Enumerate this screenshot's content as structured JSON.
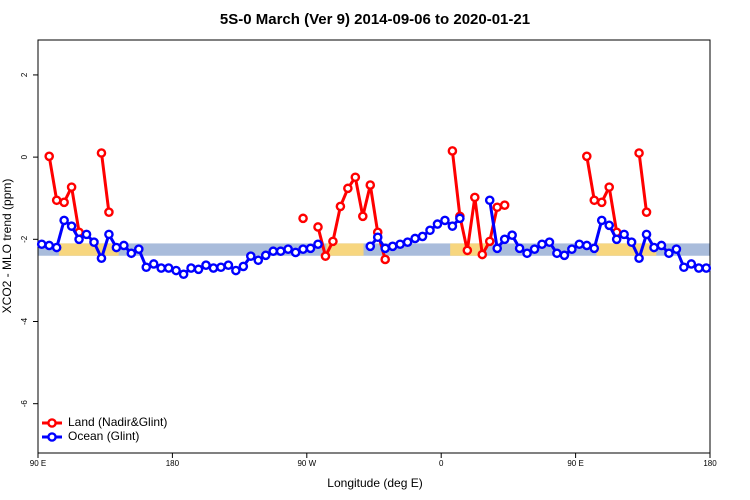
{
  "chart_data": {
    "type": "line",
    "title": "5S-0 March (Ver 9)   2014-09-06 to 2020-01-21",
    "x_label": "Longitude (deg E)",
    "y_label": "XCO2 - MLO trend (ppm)",
    "x": [
      92.5,
      97.5,
      102.5,
      107.5,
      112.5,
      117.5,
      122.5,
      127.5,
      132.5,
      137.5,
      142.5,
      147.5,
      152.5,
      157.5,
      162.5,
      167.5,
      172.5,
      177.5,
      182.5,
      187.5,
      192.5,
      197.5,
      202.5,
      207.5,
      212.5,
      217.5,
      222.5,
      227.5,
      232.5,
      237.5,
      242.5,
      247.5,
      252.5,
      257.5,
      262.5,
      267.5,
      272.5,
      277.5,
      282.5,
      287.5,
      292.5,
      297.5,
      302.5,
      307.5,
      312.5,
      317.5,
      322.5,
      327.5,
      332.5,
      337.5,
      342.5,
      347.5,
      352.5,
      357.5,
      362.5,
      367.5,
      372.5,
      377.5,
      382.5,
      387.5,
      392.5,
      397.5,
      402.5,
      407.5,
      412.5,
      417.5,
      422.5,
      427.5,
      432.5,
      437.5,
      442.5,
      447.5,
      452.5,
      457.5,
      462.5,
      467.5,
      472.5,
      477.5,
      482.5,
      487.5,
      492.5,
      497.5,
      502.5,
      507.5,
      512.5,
      517.5,
      522.5,
      527.5,
      532.5,
      537.5
    ],
    "series": [
      {
        "name": "Land (Nadir&Glint)",
        "color": "#ff0000",
        "values": [
          null,
          0.02,
          -1.05,
          -1.1,
          -0.73,
          -1.83,
          null,
          null,
          0.1,
          -1.34,
          null,
          null,
          null,
          null,
          null,
          null,
          null,
          null,
          null,
          null,
          null,
          null,
          null,
          null,
          null,
          null,
          null,
          null,
          null,
          null,
          null,
          null,
          null,
          null,
          null,
          -1.49,
          null,
          -1.7,
          -2.41,
          -2.05,
          -1.2,
          -0.76,
          -0.49,
          -1.44,
          -0.68,
          -1.83,
          -2.49,
          null,
          null,
          null,
          null,
          null,
          null,
          null,
          null,
          0.15,
          -1.44,
          -2.27,
          -0.98,
          -2.37,
          -2.05,
          -1.22,
          -1.17,
          null,
          null,
          null,
          null,
          null,
          null,
          null,
          null,
          null,
          null,
          0.02,
          -1.05,
          -1.1,
          -0.73,
          -1.83,
          null,
          null,
          0.1,
          -1.34,
          null,
          null,
          null,
          null,
          null,
          null,
          null,
          null
        ]
      },
      {
        "name": "Ocean (Glint)",
        "color": "#0000ff",
        "values": [
          -2.12,
          -2.15,
          -2.2,
          -1.54,
          -1.68,
          -2.0,
          -1.88,
          -2.07,
          -2.46,
          -1.88,
          -2.2,
          -2.15,
          -2.34,
          -2.24,
          -2.68,
          -2.6,
          -2.7,
          -2.7,
          -2.76,
          -2.85,
          -2.7,
          -2.73,
          -2.63,
          -2.7,
          -2.68,
          -2.63,
          -2.76,
          -2.66,
          -2.41,
          -2.51,
          -2.39,
          -2.29,
          -2.29,
          -2.24,
          -2.32,
          -2.24,
          -2.22,
          -2.12,
          null,
          null,
          null,
          null,
          null,
          null,
          -2.17,
          -1.95,
          -2.22,
          -2.17,
          -2.12,
          -2.07,
          -1.98,
          -1.93,
          -1.78,
          -1.63,
          -1.54,
          -1.68,
          -1.49,
          null,
          null,
          null,
          -1.05,
          -2.22,
          -2.0,
          -1.9,
          -2.22,
          -2.34,
          -2.24,
          -2.12,
          -2.07,
          -2.34,
          -2.39,
          -2.24,
          -2.12,
          -2.15,
          -2.22,
          -1.54,
          -1.66,
          -2.0,
          -1.88,
          -2.07,
          -2.46,
          -1.88,
          -2.2,
          -2.15,
          -2.34,
          -2.24,
          -2.68,
          -2.6,
          -2.7,
          -2.7
        ]
      }
    ],
    "band": {
      "ylim": [
        -2.4,
        -2.1
      ],
      "color": "#a9bcdb",
      "land_color": "#f7d67f",
      "land_x": [
        [
          104,
          144
        ],
        [
          283,
          308
        ],
        [
          366,
          390
        ],
        [
          464,
          504
        ]
      ]
    },
    "xlim": [
      90,
      540
    ],
    "xticks": [
      {
        "value": 90,
        "label": "90 E"
      },
      180,
      {
        "value": 270,
        "label": "90 W"
      },
      {
        "value": 360,
        "label": "0"
      },
      {
        "value": 450,
        "label": "90 E"
      },
      180.0001
    ],
    "ylim": [
      -7.2,
      2.85
    ],
    "yticks": [
      -6,
      -4,
      -2,
      0,
      2
    ],
    "legend": "bottom-left"
  }
}
